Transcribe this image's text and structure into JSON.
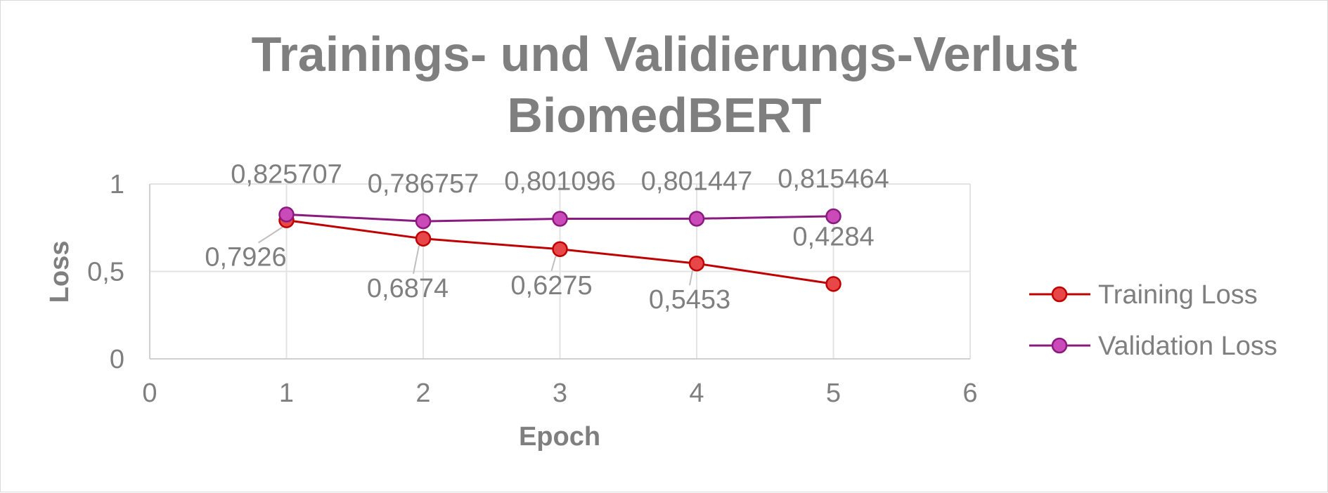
{
  "chart_data": {
    "type": "line",
    "title_lines": [
      "Trainings- und Validierungs-Verlust",
      "BiomedBERT"
    ],
    "xlabel": "Epoch",
    "ylabel": "Loss",
    "xlim": [
      0,
      6
    ],
    "ylim": [
      0,
      1
    ],
    "x_ticks": [
      "0",
      "1",
      "2",
      "3",
      "4",
      "5",
      "6"
    ],
    "y_ticks": [
      "0",
      "0,5",
      "1"
    ],
    "grid": true,
    "legend_position": "right",
    "series": [
      {
        "name": "Training Loss",
        "color": "#c00000",
        "marker_color": "#e8474a",
        "x": [
          1,
          2,
          3,
          4,
          5
        ],
        "y": [
          0.7926,
          0.6874,
          0.6275,
          0.5453,
          0.4284
        ],
        "labels": [
          "0,7926",
          "0,6874",
          "0,6275",
          "0,5453",
          "0,4284"
        ]
      },
      {
        "name": "Validation Loss",
        "color": "#8b1a7e",
        "marker_color": "#c94ab8",
        "x": [
          1,
          2,
          3,
          4,
          5
        ],
        "y": [
          0.825707,
          0.786757,
          0.801096,
          0.801447,
          0.815464
        ],
        "labels": [
          "0,825707",
          "0,786757",
          "0,801096",
          "0,801447",
          "0,815464"
        ]
      }
    ]
  }
}
